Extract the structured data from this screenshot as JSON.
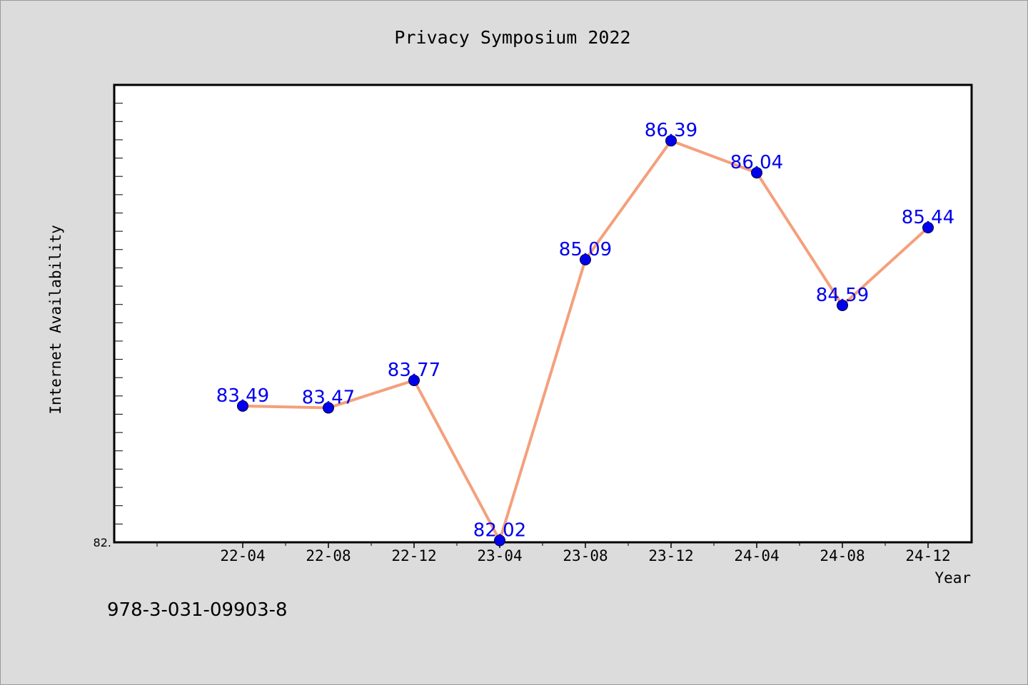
{
  "chart_data": {
    "type": "line",
    "title": "Privacy Symposium 2022",
    "xlabel": "Year",
    "ylabel": "Internet Availability",
    "y_tick_label": "82.",
    "footer": "978-3-031-09903-8",
    "categories": [
      "22-04",
      "22-08",
      "22-12",
      "23-04",
      "23-08",
      "23-12",
      "24-04",
      "24-08",
      "24-12"
    ],
    "values": [
      83.49,
      83.47,
      83.77,
      82.02,
      85.09,
      86.39,
      86.04,
      84.59,
      85.44
    ],
    "data_labels": [
      "83.49",
      "83.47",
      "83.77",
      "82.02",
      "85.09",
      "86.39",
      "86.04",
      "84.59",
      "85.44"
    ],
    "ylim": [
      82.0,
      87.0
    ],
    "grid": false,
    "line_color": "#f4a07c",
    "marker_color": "#0000ee",
    "label_color": "#0000ee",
    "plot_background": "#ffffff",
    "figure_background": "#dcdcdc"
  }
}
